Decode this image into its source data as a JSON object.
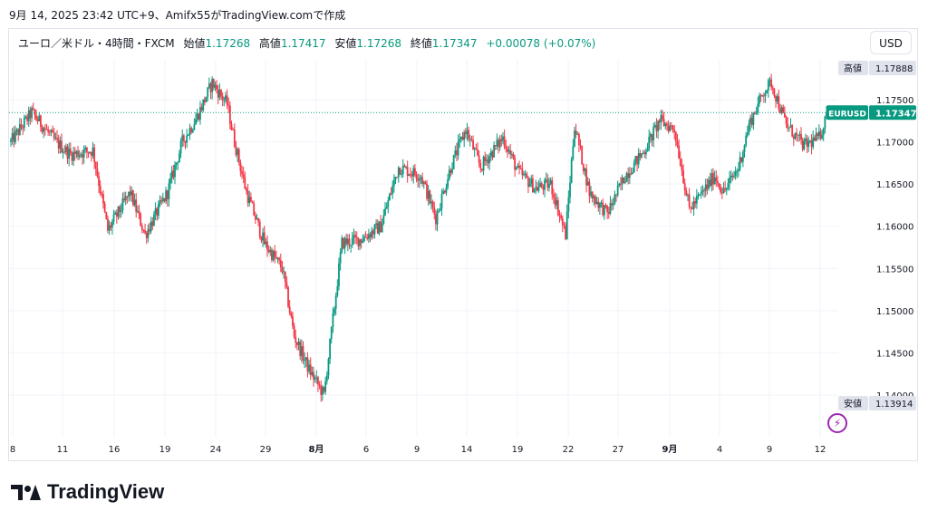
{
  "caption": "9月 14, 2025 23:42 UTC+9、Amifx55がTradingView.comで作成",
  "legend": {
    "symbol": "ユーロ／米ドル・4時間・FXCM",
    "open_label": "始値",
    "open": "1.17268",
    "high_label": "高値",
    "high": "1.17417",
    "low_label": "安値",
    "low": "1.17268",
    "close_label": "終値",
    "close": "1.17347",
    "change": "+0.00078 (+0.07%)"
  },
  "currency_button": "USD",
  "brand": "TradingView",
  "colors": {
    "up": "#089981",
    "down": "#f23645",
    "grid": "#f0f3fa",
    "bolt": "#9c27b0"
  },
  "chart_data": {
    "type": "candlestick",
    "symbol": "EURUSD",
    "timeframe": "4h",
    "y_ticks": [
      "1.14000",
      "1.14500",
      "1.15000",
      "1.15500",
      "1.16000",
      "1.16500",
      "1.17000",
      "1.17500"
    ],
    "ylim": [
      1.1355,
      1.1825
    ],
    "x_ticks": [
      "8",
      "11",
      "16",
      "19",
      "24",
      "29",
      "8月",
      "6",
      "9",
      "14",
      "19",
      "22",
      "27",
      "9月",
      "4",
      "9",
      "12"
    ],
    "x_tick_bold": [
      "8月",
      "9月"
    ],
    "last_price": {
      "label": "EURUSD",
      "value": "1.17347",
      "y": 1.17347
    },
    "high_marker": {
      "label": "高値",
      "value": "1.17888",
      "y": 1.17888
    },
    "low_marker": {
      "label": "安値",
      "value": "1.13914",
      "y": 1.13914
    },
    "anchors": [
      [
        0,
        1.17
      ],
      [
        14,
        1.1735
      ],
      [
        30,
        1.17
      ],
      [
        40,
        1.1685
      ],
      [
        55,
        1.169
      ],
      [
        65,
        1.1595
      ],
      [
        80,
        1.164
      ],
      [
        90,
        1.159
      ],
      [
        105,
        1.164
      ],
      [
        115,
        1.17
      ],
      [
        125,
        1.173
      ],
      [
        135,
        1.177
      ],
      [
        145,
        1.1745
      ],
      [
        150,
        1.17
      ],
      [
        158,
        1.164
      ],
      [
        170,
        1.158
      ],
      [
        182,
        1.155
      ],
      [
        190,
        1.147
      ],
      [
        200,
        1.143
      ],
      [
        210,
        1.14
      ],
      [
        214,
        1.146
      ],
      [
        222,
        1.158
      ],
      [
        235,
        1.1585
      ],
      [
        248,
        1.16
      ],
      [
        260,
        1.167
      ],
      [
        275,
        1.166
      ],
      [
        285,
        1.161
      ],
      [
        295,
        1.167
      ],
      [
        305,
        1.1715
      ],
      [
        315,
        1.167
      ],
      [
        330,
        1.1705
      ],
      [
        340,
        1.1665
      ],
      [
        352,
        1.1645
      ],
      [
        362,
        1.165
      ],
      [
        372,
        1.159
      ],
      [
        378,
        1.172
      ],
      [
        388,
        1.164
      ],
      [
        400,
        1.1615
      ],
      [
        412,
        1.166
      ],
      [
        425,
        1.169
      ],
      [
        435,
        1.1725
      ],
      [
        445,
        1.1715
      ],
      [
        455,
        1.162
      ],
      [
        462,
        1.1635
      ],
      [
        472,
        1.166
      ],
      [
        478,
        1.164
      ],
      [
        488,
        1.167
      ],
      [
        495,
        1.172
      ],
      [
        505,
        1.176
      ],
      [
        510,
        1.177
      ],
      [
        520,
        1.172
      ],
      [
        532,
        1.1695
      ],
      [
        542,
        1.1705
      ],
      [
        547,
        1.173
      ]
    ]
  }
}
